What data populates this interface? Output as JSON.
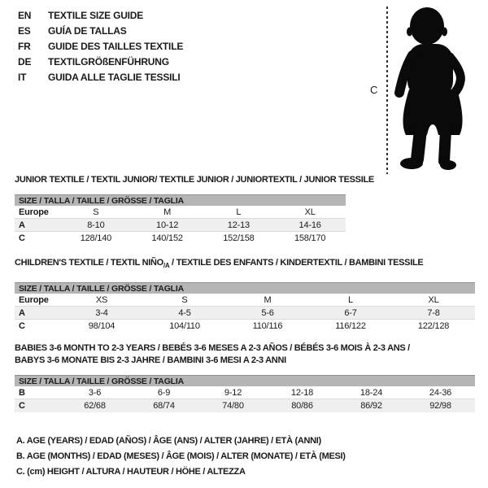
{
  "language_guide": {
    "items": [
      {
        "code": "EN",
        "label": "TEXTILE SIZE GUIDE"
      },
      {
        "code": "ES",
        "label": "GUÍA DE TALLAS"
      },
      {
        "code": "FR",
        "label": "GUIDE DES TAILLES TEXTILE"
      },
      {
        "code": "DE",
        "label": "TEXTILGRÖßENFÜHRUNG"
      },
      {
        "code": "IT",
        "label": "GUIDA ALLE TAGLIE TESSILI"
      }
    ]
  },
  "figure": {
    "icon": "toddler-silhouette",
    "measure_label": "C"
  },
  "sections": [
    {
      "title": "JUNIOR TEXTILE / TEXTIL JUNIOR/ TEXTILE JUNIOR / JUNIORTEXTIL / JUNIOR TESSILE",
      "table": {
        "header": "SIZE / TALLA / TAILLE / GRÖSSE / TAGLIA",
        "rows": [
          {
            "label": "Europe",
            "cells": [
              "S",
              "M",
              "L",
              "XL"
            ]
          },
          {
            "label": "A",
            "cells": [
              "8-10",
              "10-12",
              "12-13",
              "14-16"
            ]
          },
          {
            "label": "C",
            "cells": [
              "128/140",
              "140/152",
              "152/158",
              "158/170"
            ]
          }
        ]
      }
    },
    {
      "title_prefix": "CHILDREN'S TEXTILE / TEXTIL NIÑO",
      "title_sub": "/A",
      "title_suffix": " / TEXTILE DES ENFANTS / KINDERTEXTIL / BAMBINI TESSILE",
      "table": {
        "header": "SIZE / TALLA / TAILLE / GRÖSSE / TAGLIA",
        "rows": [
          {
            "label": "Europe",
            "cells": [
              "XS",
              "S",
              "M",
              "L",
              "XL"
            ]
          },
          {
            "label": "A",
            "cells": [
              "3-4",
              "4-5",
              "5-6",
              "6-7",
              "7-8"
            ]
          },
          {
            "label": "C",
            "cells": [
              "98/104",
              "104/110",
              "110/116",
              "116/122",
              "122/128"
            ]
          }
        ]
      }
    },
    {
      "title_line1": "BABIES 3-6 MONTH TO 2-3 YEARS / BEBÉS 3-6 MESES A 2-3 AÑOS / BÉBÉS 3-6 MOIS À 2-3 ANS /",
      "title_line2": "BABYS 3-6 MONATE BIS 2-3 JAHRE / BAMBINI 3-6 MESI A 2-3 ANNI",
      "table": {
        "header": "SIZE / TALLA / TAILLE / GRÖSSE / TAGLIA",
        "rows": [
          {
            "label": "B",
            "cells": [
              "3-6",
              "6-9",
              "9-12",
              "12-18",
              "18-24",
              "24-36"
            ]
          },
          {
            "label": "C",
            "cells": [
              "62/68",
              "68/74",
              "74/80",
              "80/86",
              "86/92",
              "92/98"
            ]
          }
        ]
      }
    }
  ],
  "footnotes": [
    "A. AGE (YEARS) / EDAD (AÑOS) / ÂGE (ANS) / ALTER (JAHRE) / ETÀ (ANNI)",
    "B. AGE (MONTHS) / EDAD (MESES) / ÂGE (MOIS) / ALTER (MONATE) / ETÀ (MESI)",
    "C. (cm) HEIGHT / ALTURA / HAUTEUR / HÖHE / ALTEZZA"
  ],
  "colors": {
    "header_bar_bg": "#b5b5b5",
    "shaded_row_bg": "#efefef",
    "text": "#1a1a1a",
    "silhouette": "#0a0a0a"
  }
}
